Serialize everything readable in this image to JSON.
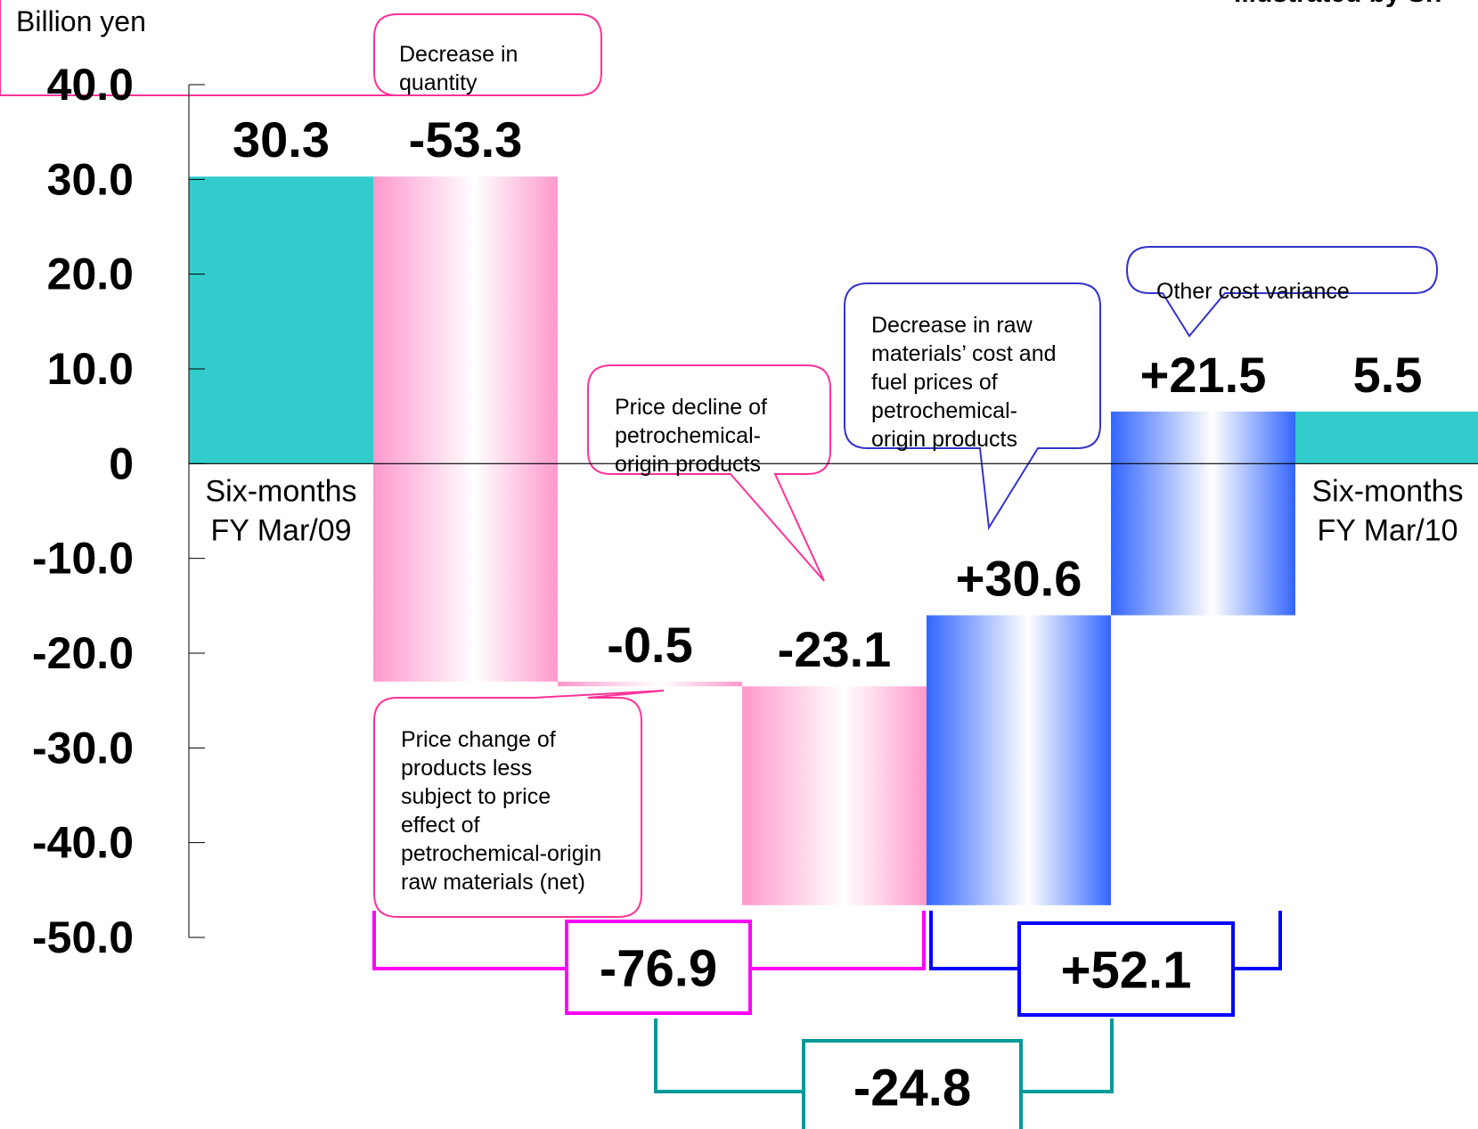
{
  "header_fragment": "Illustrated by Sh",
  "unit_label": "Billion yen",
  "chart_data": {
    "type": "bar",
    "subtype": "waterfall",
    "title": "",
    "xlabel": "",
    "ylabel": "Billion yen",
    "ylim": [
      -50,
      40
    ],
    "y_ticks": [
      "40.0",
      "30.0",
      "20.0",
      "10.0",
      "0",
      "-10.0",
      "-20.0",
      "-30.0",
      "-40.0",
      "-50.0"
    ],
    "bars": [
      {
        "label": "30.3",
        "value": 30.3,
        "start": 0,
        "end": 30.3,
        "kind": "total",
        "category": "Six-months FY Mar/09",
        "category_lines": [
          "Six-months",
          "FY Mar/09"
        ]
      },
      {
        "label": "-53.3",
        "value": -53.3,
        "start": 30.3,
        "end": -23.0,
        "kind": "negative"
      },
      {
        "label": "-0.5",
        "value": -0.5,
        "start": -23.0,
        "end": -23.5,
        "kind": "negative"
      },
      {
        "label": "-23.1",
        "value": -23.1,
        "start": -23.5,
        "end": -46.6,
        "kind": "negative"
      },
      {
        "label": "+30.6",
        "value": 30.6,
        "start": -46.6,
        "end": -16.0,
        "kind": "positive"
      },
      {
        "label": "+21.5",
        "value": 21.5,
        "start": -16.0,
        "end": 5.5,
        "kind": "positive"
      },
      {
        "label": "5.5",
        "value": 5.5,
        "start": 0,
        "end": 5.5,
        "kind": "total",
        "category": "Six-months FY Mar/10",
        "category_lines": [
          "Six-months",
          "FY Mar/10"
        ]
      }
    ],
    "callouts": [
      {
        "text_lines": [
          "Decrease in",
          "quantity"
        ],
        "target_bar": 1
      },
      {
        "text_lines": [
          "Price change of",
          "products less",
          "subject to price",
          "effect of",
          "petrochemical-origin",
          "raw materials (net)"
        ],
        "target_bar": 2
      },
      {
        "text_lines": [
          "Price decline of",
          "petrochemical-",
          "origin products"
        ],
        "target_bar": 3
      },
      {
        "text_lines": [
          "Decrease in raw",
          "materials’ cost and",
          "fuel prices of",
          "petrochemical-",
          "origin products"
        ],
        "target_bar": 4
      },
      {
        "text_lines": [
          "Other cost variance"
        ],
        "target_bar": 5
      }
    ],
    "group_totals": [
      {
        "label": "-76.9",
        "value": -76.9,
        "from_bar": 1,
        "to_bar": 3,
        "color": "#ff00ff"
      },
      {
        "label": "+52.1",
        "value": 52.1,
        "from_bar": 4,
        "to_bar": 5,
        "color": "#0000ff"
      },
      {
        "label": "-24.8",
        "value": -24.8,
        "from_group": 0,
        "to_group": 1,
        "color": "#009999"
      }
    ],
    "colors": {
      "total": "#33cccc",
      "negative": "#ff99cc",
      "positive": "#3366ff",
      "callout_pink": "#ff3399",
      "callout_blue": "#3333cc",
      "group_magenta": "#ff00ff",
      "group_blue": "#0000ff",
      "group_teal": "#009999"
    },
    "grid": false,
    "legend": "none"
  }
}
